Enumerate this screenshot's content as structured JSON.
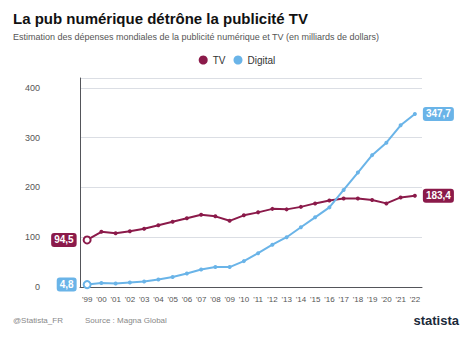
{
  "chart_data": {
    "type": "line",
    "title": "La pub numérique détrône la publicité TV",
    "subtitle": "Estimation des dépenses mondiales de la publicité numérique et TV (en milliards de dollars)",
    "credit": "@Statista_FR",
    "source": "Source : Magna Global",
    "logo": "statista",
    "categories": [
      "'99",
      "'00",
      "'01",
      "'02",
      "'03",
      "'04",
      "'05",
      "'06",
      "'07",
      "'08",
      "'09",
      "'10",
      "'11",
      "'12",
      "'13",
      "'14",
      "'15",
      "'16",
      "'17",
      "'18",
      "'19",
      "'20",
      "'21",
      "'22"
    ],
    "series": [
      {
        "name": "TV",
        "color": "#8b1a4a",
        "values": [
          94.5,
          111,
          108,
          112,
          117,
          124,
          131,
          138,
          145,
          142,
          133,
          144,
          150,
          157,
          156,
          161,
          168,
          174,
          178,
          178,
          175,
          168,
          180,
          183.4
        ],
        "value_labels": [
          "94,5",
          null,
          null,
          null,
          null,
          null,
          null,
          null,
          null,
          null,
          null,
          null,
          null,
          null,
          null,
          null,
          null,
          null,
          null,
          null,
          null,
          null,
          null,
          "183,4"
        ]
      },
      {
        "name": "Digital",
        "color": "#6ab4e8",
        "values": [
          4.8,
          8,
          7,
          9,
          11,
          15,
          20,
          27,
          35,
          40,
          40,
          52,
          68,
          85,
          100,
          120,
          140,
          160,
          195,
          230,
          265,
          290,
          325,
          347.7
        ],
        "value_labels": [
          "4,8",
          null,
          null,
          null,
          null,
          null,
          null,
          null,
          null,
          null,
          null,
          null,
          null,
          null,
          null,
          null,
          null,
          null,
          null,
          null,
          null,
          null,
          null,
          "347,7"
        ]
      }
    ],
    "ylim": [
      0,
      420
    ],
    "yticks": [
      0,
      100,
      200,
      300,
      400
    ],
    "grid": true,
    "legend": "top"
  }
}
